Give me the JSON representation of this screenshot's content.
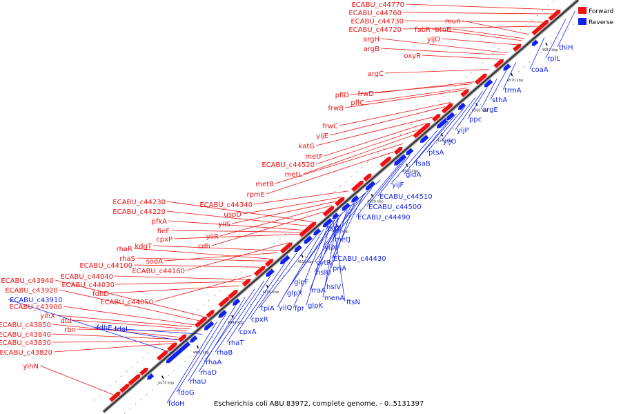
{
  "caption": "Escherichia coli ABU 83972, complete genome. - 0..5131397",
  "colors": {
    "forward": "#ee1111",
    "reverse": "#1122ee",
    "axis_dark": "#444444",
    "axis_light": "#bbbbbb"
  },
  "legend": [
    {
      "label": "Forward",
      "color": "#ee1111"
    },
    {
      "label": "Reverse",
      "color": "#1122ee"
    }
  ],
  "ticks": [
    "4470 kbp",
    "4480 kbp",
    "4490 kbp",
    "4500 kbp",
    "4510 kbp",
    "4520 kbp",
    "4530 kbp",
    "4540 kbp",
    "4550 kbp",
    "4560 kbp",
    "4570 kbp",
    "4580 kbp"
  ],
  "forward_labels": [
    "ECABU_c44770",
    "ECABU_c44760",
    "ECABU_c44730",
    "ECABU_c44720",
    "murI",
    "fabR",
    "btuB",
    "yijD",
    "argH",
    "argB",
    "oxyR",
    "argC",
    "pflD",
    "frwD",
    "pflC",
    "frwB",
    "frwC",
    "yijE",
    "katG",
    "metF",
    "ECABU_c44520",
    "metL",
    "metB",
    "rpmE",
    "ECABU_c44230",
    "ECABU_c44220",
    "ECABU_c44340",
    "uspD",
    "pfkA",
    "fieF",
    "yiiS",
    "cpxP",
    "yiiR",
    "cdh",
    "rhaR",
    "kdgT",
    "rhaS",
    "sodA",
    "ECABU_c44100",
    "ECABU_c44160",
    "ECABU_c43940",
    "ECABU_c44040",
    "ECABU_c44030",
    "fdhD",
    "ECABU_c44050",
    "ECABU_c43920",
    "ECABU_c43900",
    "yihX",
    "dtd",
    "rbn",
    "ECABU_c43850",
    "ECABU_c43840",
    "ECABU_c43830",
    "ECABU_c43820",
    "yihN"
  ],
  "reverse_labels": [
    "thiH",
    "rplL",
    "coaA",
    "trmA",
    "sthA",
    "argE",
    "ppc",
    "yijP",
    "yijO",
    "ptsA",
    "fsaB",
    "gldA",
    "yijF",
    "ECABU_c44510",
    "ECABU_c44500",
    "ECABU_c44490",
    "tsx2",
    "metJ",
    "yiiX",
    "ECABU_c44430",
    "cytR",
    "priA",
    "hslU",
    "hslV",
    "glpF",
    "rraA",
    "glpX",
    "menA",
    "ftsN",
    "fpr",
    "glpK",
    "yiiQ",
    "tpiA",
    "cpxR",
    "cpxA",
    "rhaT",
    "rhaB",
    "rhaA",
    "rhaD",
    "rhaU",
    "fdoG",
    "fdoH",
    "ECABU_c43910",
    "fdhE",
    "fdoI"
  ]
}
